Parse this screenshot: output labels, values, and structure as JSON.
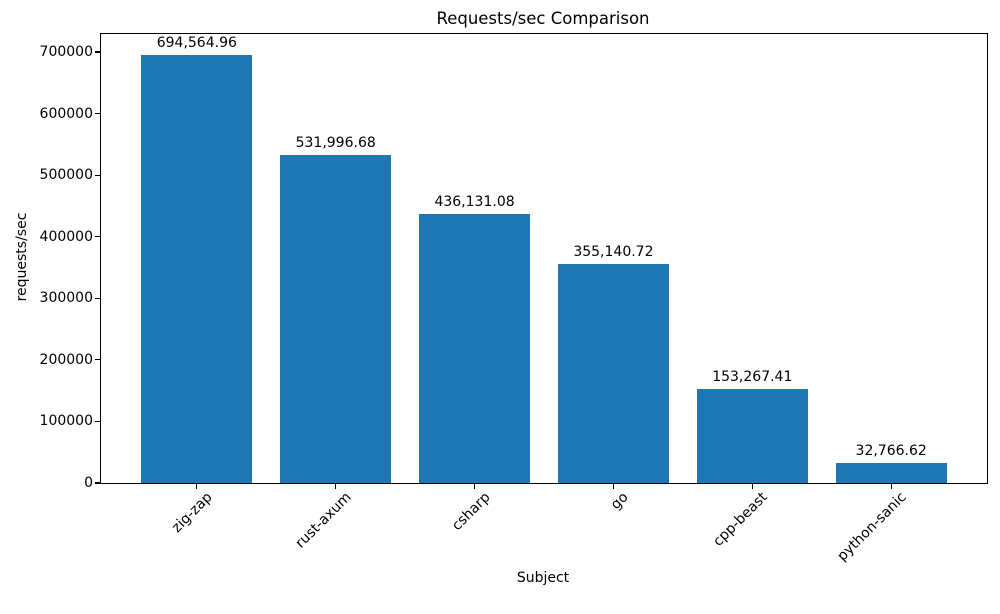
{
  "chart_data": {
    "type": "bar",
    "title": "Requests/sec Comparison",
    "xlabel": "Subject",
    "ylabel": "requests/sec",
    "categories": [
      "zig-zap",
      "rust-axum",
      "csharp",
      "go",
      "cpp-beast",
      "python-sanic"
    ],
    "values": [
      694564.96,
      531996.68,
      436131.08,
      355140.72,
      153267.41,
      32766.62
    ],
    "value_labels": [
      "694,564.96",
      "531,996.68",
      "436,131.08",
      "355,140.72",
      "153,267.41",
      "32,766.62"
    ],
    "yticks": [
      0,
      100000,
      200000,
      300000,
      400000,
      500000,
      600000,
      700000
    ],
    "ytick_labels": [
      "0",
      "100000",
      "200000",
      "300000",
      "400000",
      "500000",
      "600000",
      "700000"
    ],
    "ylim": [
      0,
      729293
    ],
    "bar_color": "#1f77b4",
    "grid": false,
    "legend": "none",
    "xtick_rotation": 45
  }
}
